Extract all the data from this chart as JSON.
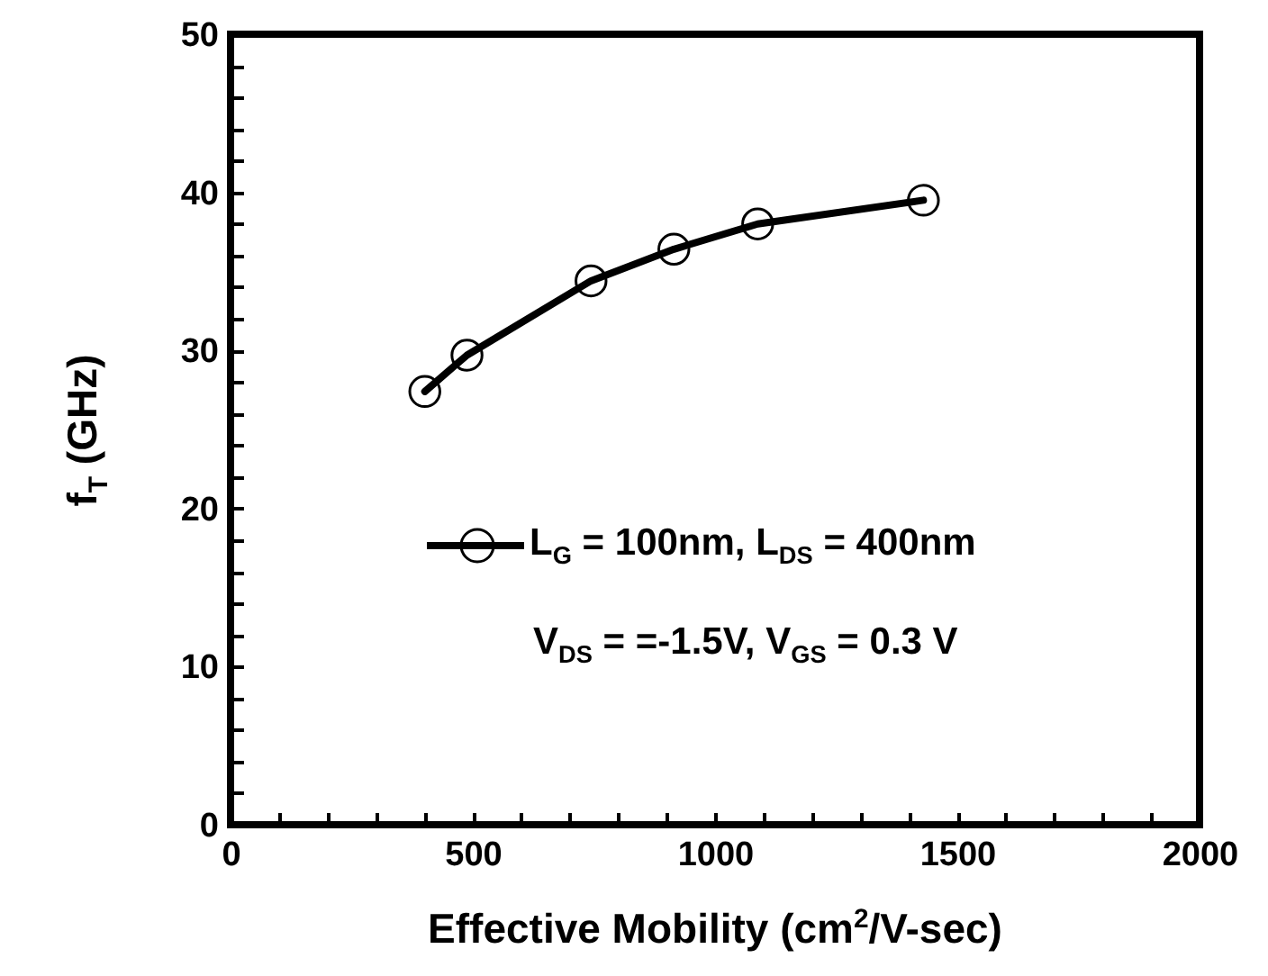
{
  "chart_data": {
    "type": "line",
    "xlabel": "Effective Mobility (cm$^{2}$/V-sec)",
    "ylabel": "f$_{T}$ (GHz)",
    "x": [
      401,
      488,
      744,
      915,
      1088,
      1430
    ],
    "series": [
      {
        "name": "L$_{G}$ = 100nm, L$_{DS}$ = 400nm",
        "color": "#000000",
        "values": [
          27.4,
          29.7,
          34.4,
          36.4,
          38.0,
          39.5
        ]
      }
    ],
    "annotations": [
      "V$_{DS}$ = =-1.5V, V$_{GS}$ = 0.3 V"
    ],
    "xlim": [
      0,
      2000
    ],
    "xticks": [
      0,
      {
        "value": 100,
        "label": null
      },
      {
        "value": 200,
        "label": null
      },
      {
        "value": 300,
        "label": null
      },
      {
        "value": 400,
        "label": null
      },
      500,
      {
        "value": 600,
        "label": null
      },
      {
        "value": 700,
        "label": null
      },
      {
        "value": 800,
        "label": null
      },
      {
        "value": 900,
        "label": null
      },
      1000,
      {
        "value": 1100,
        "label": null
      },
      {
        "value": 1200,
        "label": null
      },
      {
        "value": 1300,
        "label": null
      },
      {
        "value": 1400,
        "label": null
      },
      1500,
      {
        "value": 1600,
        "label": null
      },
      {
        "value": 1700,
        "label": null
      },
      {
        "value": 1800,
        "label": null
      },
      {
        "value": 1900,
        "label": null
      },
      2000
    ],
    "ylim": [
      0,
      50
    ],
    "yticks": [
      0,
      {
        "value": 2,
        "label": null
      },
      {
        "value": 4,
        "label": null
      },
      {
        "value": 6,
        "label": null
      },
      {
        "value": 8,
        "label": null
      },
      10,
      {
        "value": 12,
        "label": null
      },
      {
        "value": 14,
        "label": null
      },
      {
        "value": 16,
        "label": null
      },
      {
        "value": 18,
        "label": null
      },
      20,
      {
        "value": 22,
        "label": null
      },
      {
        "value": 24,
        "label": null
      },
      {
        "value": 26,
        "label": null
      },
      {
        "value": 28,
        "label": null
      },
      30,
      {
        "value": 32,
        "label": null
      },
      {
        "value": 34,
        "label": null
      },
      {
        "value": 36,
        "label": null
      },
      {
        "value": 38,
        "label": null
      },
      40,
      {
        "value": 42,
        "label": null
      },
      {
        "value": 44,
        "label": null
      },
      {
        "value": 46,
        "label": null
      },
      {
        "value": 48,
        "label": null
      },
      50
    ],
    "legend": "bottom right",
    "marker": "circle",
    "line_style": "solid"
  }
}
